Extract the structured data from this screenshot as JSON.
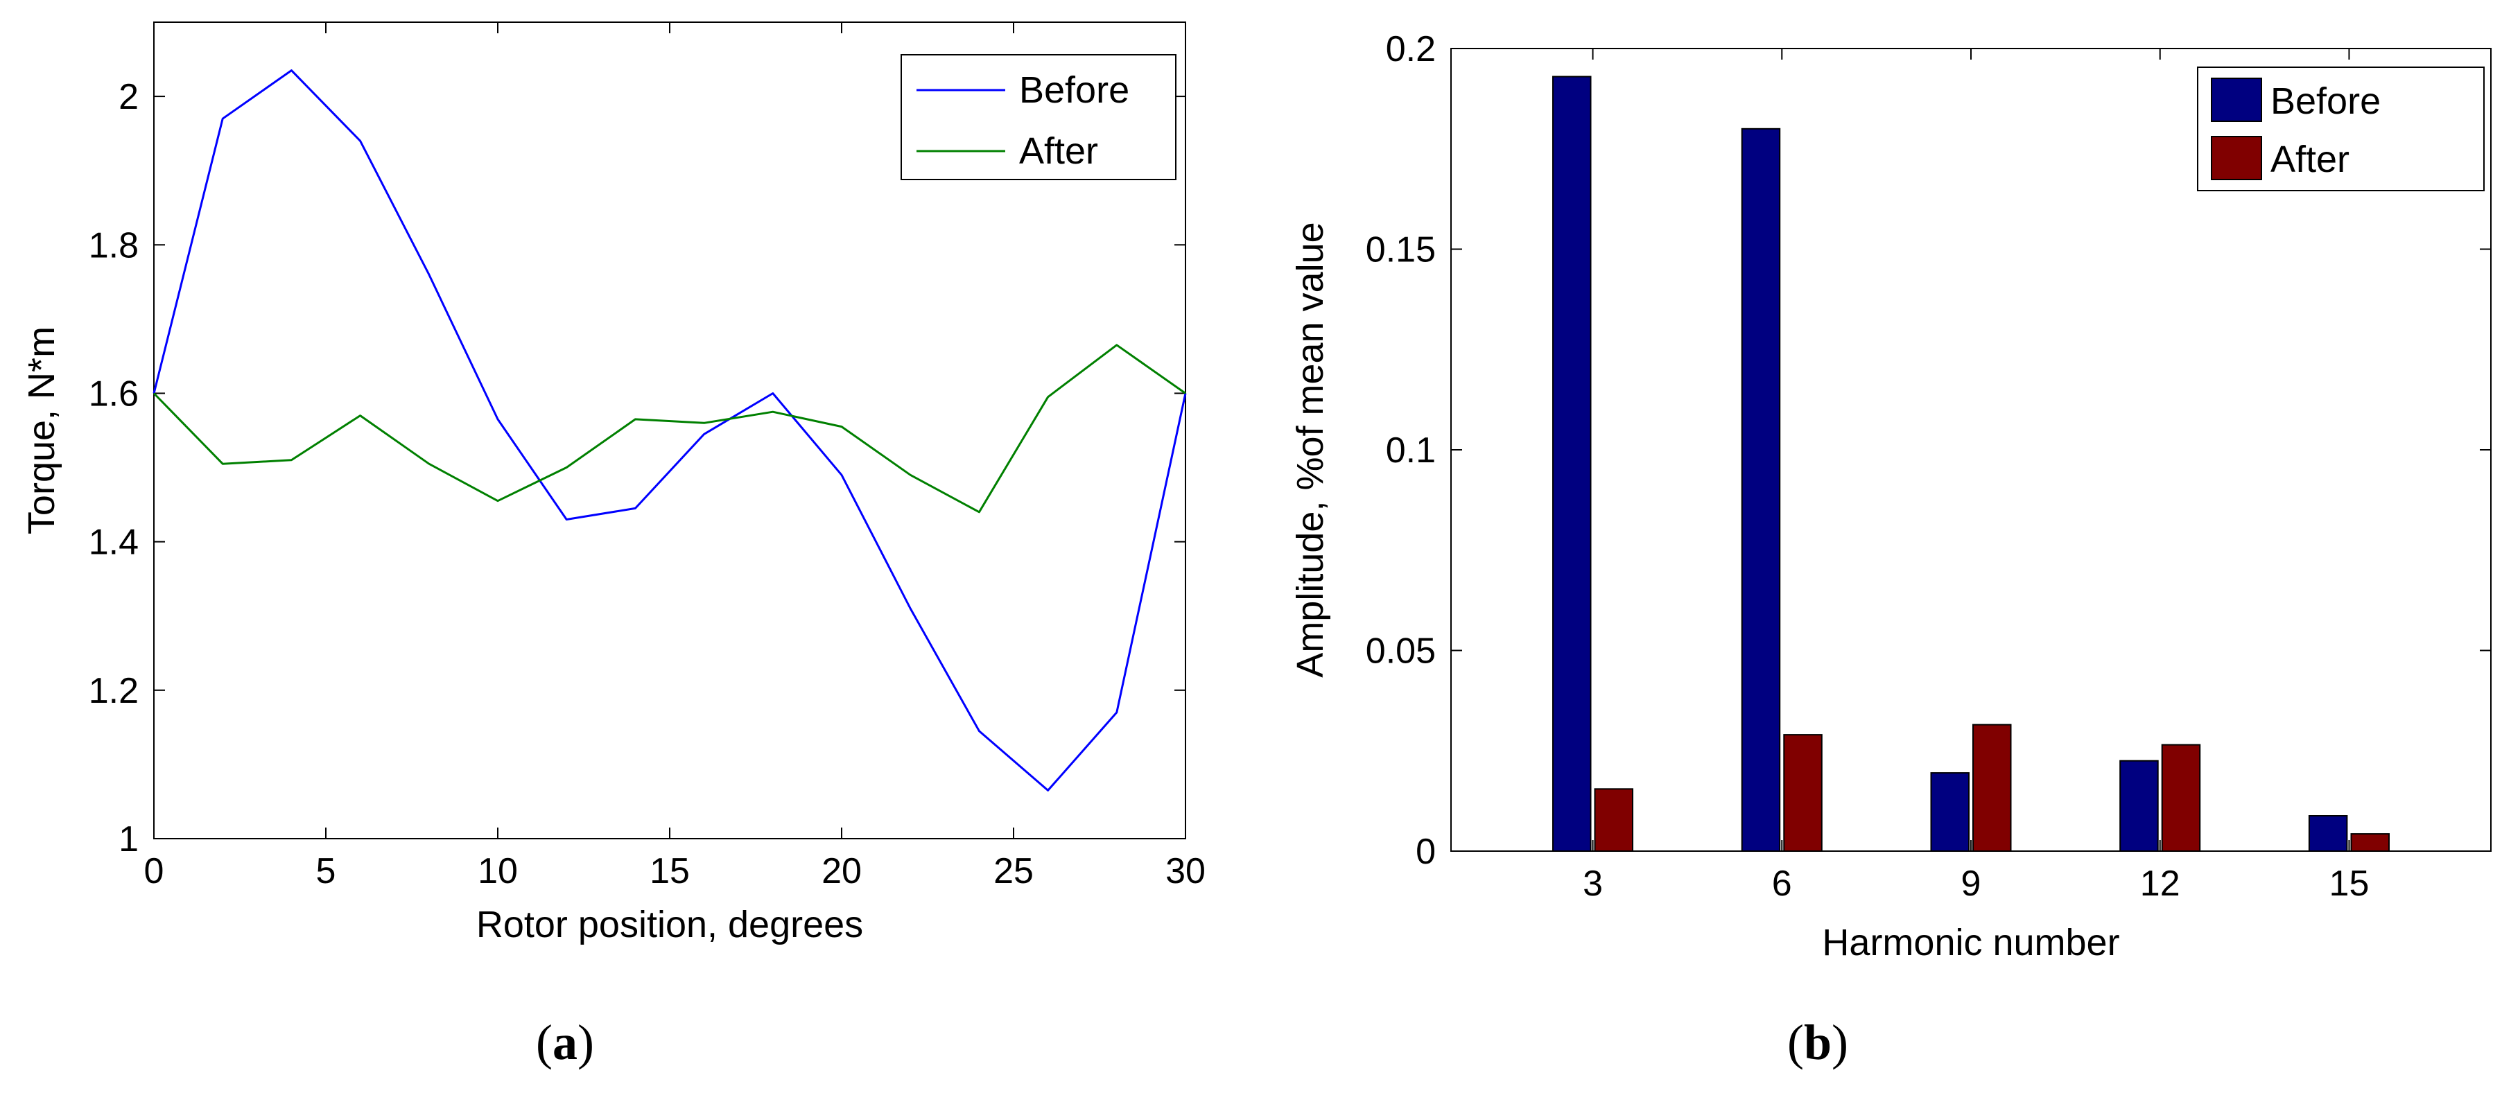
{
  "chart_data": [
    {
      "type": "line",
      "caption_open": "(",
      "caption_letter": "a",
      "caption_close": ")",
      "xlabel": "Rotor position, degrees",
      "ylabel": "Torque, N*m",
      "xlim": [
        0,
        30
      ],
      "ylim": [
        1,
        2.1
      ],
      "xticks": [
        0,
        5,
        10,
        15,
        20,
        25,
        30
      ],
      "yticks": [
        1,
        1.2,
        1.4,
        1.6,
        1.8,
        2
      ],
      "ytick_labels": [
        "1",
        "1.2",
        "1.4",
        "1.6",
        "1.8",
        "2"
      ],
      "grid": false,
      "legend_position": "top-right",
      "x": [
        0,
        2,
        4,
        6,
        8,
        10,
        12,
        14,
        16,
        18,
        20,
        22,
        24,
        26,
        28,
        30
      ],
      "series": [
        {
          "name": "Before",
          "color": "#0000ff",
          "values": [
            1.6,
            1.97,
            2.035,
            1.94,
            1.76,
            1.565,
            1.43,
            1.445,
            1.545,
            1.6,
            1.49,
            1.31,
            1.145,
            1.065,
            1.17,
            1.6
          ]
        },
        {
          "name": "After",
          "color": "#008000",
          "values": [
            1.6,
            1.505,
            1.51,
            1.57,
            1.505,
            1.455,
            1.5,
            1.565,
            1.56,
            1.575,
            1.555,
            1.49,
            1.44,
            1.595,
            1.665,
            1.6
          ]
        }
      ]
    },
    {
      "type": "bar",
      "caption_open": "(",
      "caption_letter": "b",
      "caption_close": ")",
      "xlabel": "Harmonic number",
      "ylabel": "Amplitude, %of mean value",
      "ylim": [
        0,
        0.2
      ],
      "yticks": [
        0,
        0.05,
        0.1,
        0.15,
        0.2
      ],
      "ytick_labels": [
        "0",
        "0.05",
        "0.1",
        "0.15",
        "0.2"
      ],
      "grid": false,
      "legend_position": "top-right",
      "categories": [
        "3",
        "6",
        "9",
        "12",
        "15"
      ],
      "series": [
        {
          "name": "Before",
          "color": "#000080",
          "values": [
            0.193,
            0.18,
            0.0195,
            0.0225,
            0.0088
          ]
        },
        {
          "name": "After",
          "color": "#800000",
          "values": [
            0.0155,
            0.029,
            0.0315,
            0.0265,
            0.0043
          ]
        }
      ]
    }
  ]
}
